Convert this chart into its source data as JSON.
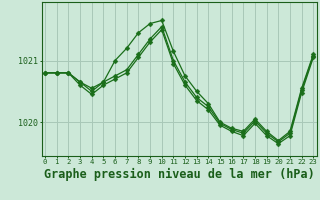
{
  "series": [
    [
      1020.8,
      1020.8,
      1020.8,
      1020.65,
      1020.55,
      1020.65,
      1021.0,
      1021.2,
      1021.45,
      1021.6,
      1021.65,
      1021.15,
      1020.75,
      1020.5,
      1020.3,
      1020.0,
      1019.9,
      1019.85,
      1020.05,
      1019.85,
      1019.7,
      1019.85,
      1020.55,
      1021.1
    ],
    [
      1020.8,
      1020.8,
      1020.8,
      1020.65,
      1020.5,
      1020.65,
      1020.75,
      1020.85,
      1021.1,
      1021.35,
      1021.55,
      1021.0,
      1020.65,
      1020.4,
      1020.25,
      1019.98,
      1019.88,
      1019.82,
      1020.02,
      1019.82,
      1019.68,
      1019.82,
      1020.52,
      1021.08
    ],
    [
      1020.8,
      1020.8,
      1020.8,
      1020.6,
      1020.45,
      1020.6,
      1020.7,
      1020.8,
      1021.05,
      1021.3,
      1021.5,
      1020.95,
      1020.6,
      1020.35,
      1020.2,
      1019.95,
      1019.85,
      1019.78,
      1019.98,
      1019.78,
      1019.65,
      1019.78,
      1020.48,
      1021.05
    ]
  ],
  "x": [
    0,
    1,
    2,
    3,
    4,
    5,
    6,
    7,
    8,
    9,
    10,
    11,
    12,
    13,
    14,
    15,
    16,
    17,
    18,
    19,
    20,
    21,
    22,
    23
  ],
  "line_color": "#1a6e1a",
  "marker": "D",
  "marker_size": 2.5,
  "bg_color": "#cce8d8",
  "plot_bg_color": "#cce8d8",
  "grid_color": "#a8c8b8",
  "axis_label_color": "#1a5e1a",
  "tick_color": "#1a5e1a",
  "title": "Graphe pression niveau de la mer (hPa)",
  "title_fontsize": 8.5,
  "xlabel_ticks": [
    0,
    1,
    2,
    3,
    4,
    5,
    6,
    7,
    8,
    9,
    10,
    11,
    12,
    13,
    14,
    15,
    16,
    17,
    18,
    19,
    20,
    21,
    22,
    23
  ],
  "yticks": [
    1020,
    1021
  ],
  "ylim": [
    1019.45,
    1021.95
  ],
  "xlim": [
    -0.3,
    23.3
  ]
}
